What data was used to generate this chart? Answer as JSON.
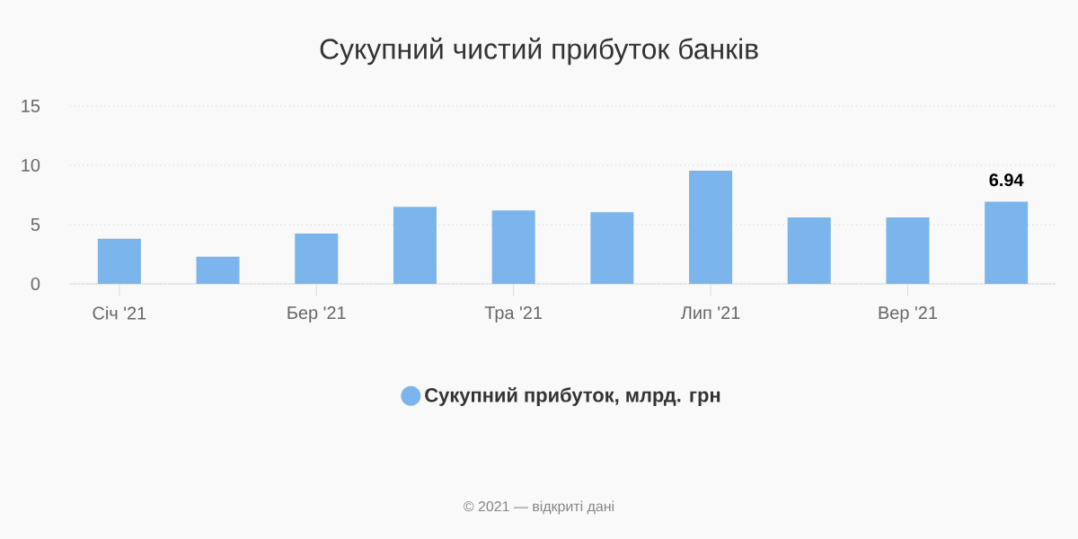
{
  "chart_data": {
    "type": "bar",
    "title": "Сукупний чистий прибуток банків",
    "categories": [
      "Січ '21",
      null,
      "Бер '21",
      null,
      "Тра '21",
      null,
      "Лип '21",
      null,
      "Вер '21",
      null
    ],
    "series": [
      {
        "name": "Сукупний прибуток, млрд. грн",
        "color": "#7cb5ec",
        "values": [
          3.8,
          2.3,
          4.25,
          6.5,
          6.2,
          6.05,
          9.55,
          5.6,
          5.6,
          6.94
        ],
        "value_labels": [
          null,
          null,
          null,
          null,
          null,
          null,
          null,
          null,
          null,
          "6.94"
        ]
      }
    ],
    "ylim": [
      0,
      15
    ],
    "yticks": [
      0,
      5,
      10,
      15
    ],
    "grid": "y",
    "legend": "bottom",
    "annotations": [
      "© 2021 — відкриті дані"
    ]
  }
}
